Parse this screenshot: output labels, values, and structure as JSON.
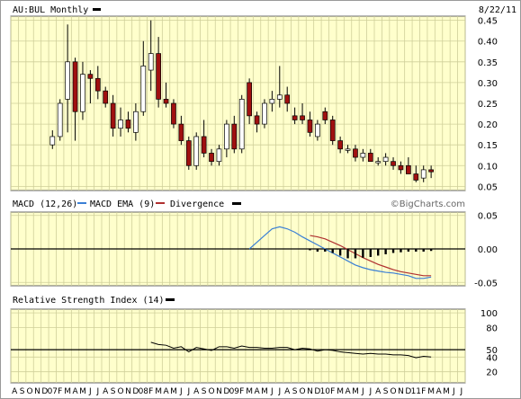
{
  "header": {
    "symbol_title": "AU:BUL Monthly",
    "date": "8/22/11"
  },
  "copyright": "©BigCharts.com",
  "colors": {
    "panel_bg": "#ffffcc",
    "grid": "#cfcf9a",
    "up": "#ffffff",
    "down": "#a01010",
    "macd_line": "#3a7fd5",
    "ema_line": "#b03030",
    "divergence": "#000000",
    "rsi_line": "#000000"
  },
  "chart_data": [
    {
      "type": "candlestick",
      "title": "AU:BUL Monthly",
      "y_ticks": [
        "0.45",
        "0.40",
        "0.35",
        "0.30",
        "0.25",
        "0.20",
        "0.15",
        "0.10",
        "0.05"
      ],
      "ylim": [
        0.04,
        0.46
      ],
      "x_ticks": [
        "A",
        "S",
        "O",
        "N",
        "D",
        "07",
        "F",
        "M",
        "A",
        "M",
        "J",
        "J",
        "A",
        "S",
        "O",
        "N",
        "D",
        "08",
        "F",
        "M",
        "A",
        "M",
        "J",
        "J",
        "A",
        "S",
        "O",
        "N",
        "D",
        "09",
        "F",
        "M",
        "A",
        "M",
        "J",
        "J",
        "A",
        "S",
        "O",
        "N",
        "D",
        "10",
        "F",
        "M",
        "A",
        "M",
        "J",
        "J",
        "A",
        "S",
        "O",
        "N",
        "D",
        "11",
        "F",
        "M",
        "A",
        "M",
        "J",
        "J"
      ],
      "candles": [
        {
          "i": 5,
          "o": 0.15,
          "h": 0.185,
          "l": 0.14,
          "c": 0.17
        },
        {
          "i": 6,
          "o": 0.17,
          "h": 0.26,
          "l": 0.16,
          "c": 0.25
        },
        {
          "i": 7,
          "o": 0.26,
          "h": 0.44,
          "l": 0.18,
          "c": 0.35
        },
        {
          "i": 8,
          "o": 0.35,
          "h": 0.36,
          "l": 0.16,
          "c": 0.23
        },
        {
          "i": 9,
          "o": 0.23,
          "h": 0.35,
          "l": 0.21,
          "c": 0.32
        },
        {
          "i": 10,
          "o": 0.32,
          "h": 0.33,
          "l": 0.25,
          "c": 0.31
        },
        {
          "i": 11,
          "o": 0.31,
          "h": 0.34,
          "l": 0.26,
          "c": 0.28
        },
        {
          "i": 12,
          "o": 0.28,
          "h": 0.29,
          "l": 0.24,
          "c": 0.25
        },
        {
          "i": 13,
          "o": 0.25,
          "h": 0.27,
          "l": 0.17,
          "c": 0.19
        },
        {
          "i": 14,
          "o": 0.19,
          "h": 0.24,
          "l": 0.17,
          "c": 0.21
        },
        {
          "i": 15,
          "o": 0.21,
          "h": 0.23,
          "l": 0.18,
          "c": 0.19
        },
        {
          "i": 16,
          "o": 0.18,
          "h": 0.25,
          "l": 0.16,
          "c": 0.23
        },
        {
          "i": 17,
          "o": 0.23,
          "h": 0.4,
          "l": 0.22,
          "c": 0.34
        },
        {
          "i": 18,
          "o": 0.33,
          "h": 0.45,
          "l": 0.28,
          "c": 0.37
        },
        {
          "i": 19,
          "o": 0.37,
          "h": 0.41,
          "l": 0.24,
          "c": 0.26
        },
        {
          "i": 20,
          "o": 0.26,
          "h": 0.3,
          "l": 0.24,
          "c": 0.25
        },
        {
          "i": 21,
          "o": 0.25,
          "h": 0.26,
          "l": 0.19,
          "c": 0.2
        },
        {
          "i": 22,
          "o": 0.2,
          "h": 0.22,
          "l": 0.15,
          "c": 0.16
        },
        {
          "i": 23,
          "o": 0.16,
          "h": 0.17,
          "l": 0.09,
          "c": 0.1
        },
        {
          "i": 24,
          "o": 0.1,
          "h": 0.18,
          "l": 0.09,
          "c": 0.17
        },
        {
          "i": 25,
          "o": 0.17,
          "h": 0.21,
          "l": 0.12,
          "c": 0.13
        },
        {
          "i": 26,
          "o": 0.13,
          "h": 0.14,
          "l": 0.1,
          "c": 0.11
        },
        {
          "i": 27,
          "o": 0.11,
          "h": 0.15,
          "l": 0.1,
          "c": 0.14
        },
        {
          "i": 28,
          "o": 0.14,
          "h": 0.21,
          "l": 0.12,
          "c": 0.2
        },
        {
          "i": 29,
          "o": 0.2,
          "h": 0.22,
          "l": 0.13,
          "c": 0.14
        },
        {
          "i": 30,
          "o": 0.14,
          "h": 0.27,
          "l": 0.13,
          "c": 0.26
        },
        {
          "i": 31,
          "o": 0.3,
          "h": 0.31,
          "l": 0.2,
          "c": 0.22
        },
        {
          "i": 32,
          "o": 0.22,
          "h": 0.23,
          "l": 0.18,
          "c": 0.2
        },
        {
          "i": 33,
          "o": 0.2,
          "h": 0.26,
          "l": 0.19,
          "c": 0.25
        },
        {
          "i": 34,
          "o": 0.25,
          "h": 0.28,
          "l": 0.23,
          "c": 0.26
        },
        {
          "i": 35,
          "o": 0.26,
          "h": 0.34,
          "l": 0.24,
          "c": 0.27
        },
        {
          "i": 36,
          "o": 0.27,
          "h": 0.29,
          "l": 0.23,
          "c": 0.25
        },
        {
          "i": 37,
          "o": 0.22,
          "h": 0.24,
          "l": 0.2,
          "c": 0.21
        },
        {
          "i": 38,
          "o": 0.22,
          "h": 0.25,
          "l": 0.2,
          "c": 0.21
        },
        {
          "i": 39,
          "o": 0.21,
          "h": 0.23,
          "l": 0.17,
          "c": 0.18
        },
        {
          "i": 40,
          "o": 0.17,
          "h": 0.21,
          "l": 0.16,
          "c": 0.2
        },
        {
          "i": 41,
          "o": 0.23,
          "h": 0.24,
          "l": 0.2,
          "c": 0.21
        },
        {
          "i": 42,
          "o": 0.21,
          "h": 0.22,
          "l": 0.15,
          "c": 0.16
        },
        {
          "i": 43,
          "o": 0.16,
          "h": 0.17,
          "l": 0.13,
          "c": 0.14
        },
        {
          "i": 44,
          "o": 0.14,
          "h": 0.15,
          "l": 0.13,
          "c": 0.14
        },
        {
          "i": 45,
          "o": 0.14,
          "h": 0.15,
          "l": 0.11,
          "c": 0.12
        },
        {
          "i": 46,
          "o": 0.12,
          "h": 0.14,
          "l": 0.11,
          "c": 0.13
        },
        {
          "i": 47,
          "o": 0.13,
          "h": 0.14,
          "l": 0.11,
          "c": 0.11
        },
        {
          "i": 48,
          "o": 0.11,
          "h": 0.12,
          "l": 0.1,
          "c": 0.11
        },
        {
          "i": 49,
          "o": 0.11,
          "h": 0.13,
          "l": 0.1,
          "c": 0.12
        },
        {
          "i": 50,
          "o": 0.11,
          "h": 0.12,
          "l": 0.09,
          "c": 0.1
        },
        {
          "i": 51,
          "o": 0.1,
          "h": 0.11,
          "l": 0.08,
          "c": 0.09
        },
        {
          "i": 52,
          "o": 0.1,
          "h": 0.12,
          "l": 0.08,
          "c": 0.08
        },
        {
          "i": 53,
          "o": 0.08,
          "h": 0.1,
          "l": 0.06,
          "c": 0.065
        },
        {
          "i": 54,
          "o": 0.07,
          "h": 0.1,
          "l": 0.06,
          "c": 0.09
        },
        {
          "i": 55,
          "o": 0.09,
          "h": 0.1,
          "l": 0.07,
          "c": 0.085
        }
      ]
    },
    {
      "type": "line",
      "title": "MACD (12,26)",
      "legend": [
        "MACD EMA (9)",
        "Divergence"
      ],
      "y_ticks": [
        "0.05",
        "0.00",
        "-0.05"
      ],
      "ylim": [
        -0.055,
        0.055
      ],
      "series": [
        {
          "name": "MACD (12,26)",
          "points": [
            [
              31,
              0
            ],
            [
              32,
              0.01
            ],
            [
              33,
              0.02
            ],
            [
              34,
              0.03
            ],
            [
              35,
              0.033
            ],
            [
              36,
              0.03
            ],
            [
              37,
              0.025
            ],
            [
              38,
              0.018
            ],
            [
              39,
              0.012
            ],
            [
              40,
              0.006
            ],
            [
              41,
              0.0
            ],
            [
              42,
              -0.006
            ],
            [
              43,
              -0.012
            ],
            [
              44,
              -0.018
            ],
            [
              45,
              -0.024
            ],
            [
              46,
              -0.028
            ],
            [
              47,
              -0.031
            ],
            [
              48,
              -0.033
            ],
            [
              49,
              -0.035
            ],
            [
              50,
              -0.036
            ],
            [
              51,
              -0.038
            ],
            [
              52,
              -0.04
            ],
            [
              53,
              -0.044
            ],
            [
              54,
              -0.044
            ],
            [
              55,
              -0.042
            ]
          ]
        },
        {
          "name": "MACD EMA (9)",
          "points": [
            [
              39,
              0.02
            ],
            [
              40,
              0.018
            ],
            [
              41,
              0.015
            ],
            [
              42,
              0.01
            ],
            [
              43,
              0.005
            ],
            [
              44,
              -0.001
            ],
            [
              45,
              -0.007
            ],
            [
              46,
              -0.013
            ],
            [
              47,
              -0.018
            ],
            [
              48,
              -0.023
            ],
            [
              49,
              -0.027
            ],
            [
              50,
              -0.031
            ],
            [
              51,
              -0.034
            ],
            [
              52,
              -0.036
            ],
            [
              53,
              -0.038
            ],
            [
              54,
              -0.04
            ],
            [
              55,
              -0.04
            ]
          ]
        },
        {
          "name": "Divergence",
          "bars": [
            [
              39,
              -0.002
            ],
            [
              40,
              -0.004
            ],
            [
              41,
              -0.004
            ],
            [
              42,
              -0.006
            ],
            [
              43,
              -0.01
            ],
            [
              44,
              -0.014
            ],
            [
              45,
              -0.014
            ],
            [
              46,
              -0.013
            ],
            [
              47,
              -0.012
            ],
            [
              48,
              -0.01
            ],
            [
              49,
              -0.008
            ],
            [
              50,
              -0.006
            ],
            [
              51,
              -0.005
            ],
            [
              52,
              -0.004
            ],
            [
              53,
              -0.004
            ],
            [
              54,
              -0.004
            ],
            [
              55,
              -0.003
            ]
          ]
        }
      ]
    },
    {
      "type": "line",
      "title": "Relative Strength Index (14)",
      "y_ticks": [
        "100",
        "80",
        "50",
        "40",
        "20"
      ],
      "ylim": [
        5,
        105
      ],
      "series": [
        {
          "name": "Relative Strength Index (14)",
          "points": [
            [
              18,
              60
            ],
            [
              19,
              57
            ],
            [
              20,
              56
            ],
            [
              21,
              52
            ],
            [
              22,
              54
            ],
            [
              23,
              47
            ],
            [
              24,
              53
            ],
            [
              25,
              51
            ],
            [
              26,
              49
            ],
            [
              27,
              54
            ],
            [
              28,
              54
            ],
            [
              29,
              52
            ],
            [
              30,
              55
            ],
            [
              31,
              53
            ],
            [
              32,
              53
            ],
            [
              33,
              52
            ],
            [
              34,
              52
            ],
            [
              35,
              53
            ],
            [
              36,
              53
            ],
            [
              37,
              50
            ],
            [
              38,
              52
            ],
            [
              39,
              51
            ],
            [
              40,
              48
            ],
            [
              41,
              50
            ],
            [
              42,
              49
            ],
            [
              43,
              47
            ],
            [
              44,
              46
            ],
            [
              45,
              45
            ],
            [
              46,
              44
            ],
            [
              47,
              45
            ],
            [
              48,
              44
            ],
            [
              49,
              44
            ],
            [
              50,
              43
            ],
            [
              51,
              43
            ],
            [
              52,
              42
            ],
            [
              53,
              39
            ],
            [
              54,
              41
            ],
            [
              55,
              40
            ]
          ]
        }
      ]
    }
  ]
}
